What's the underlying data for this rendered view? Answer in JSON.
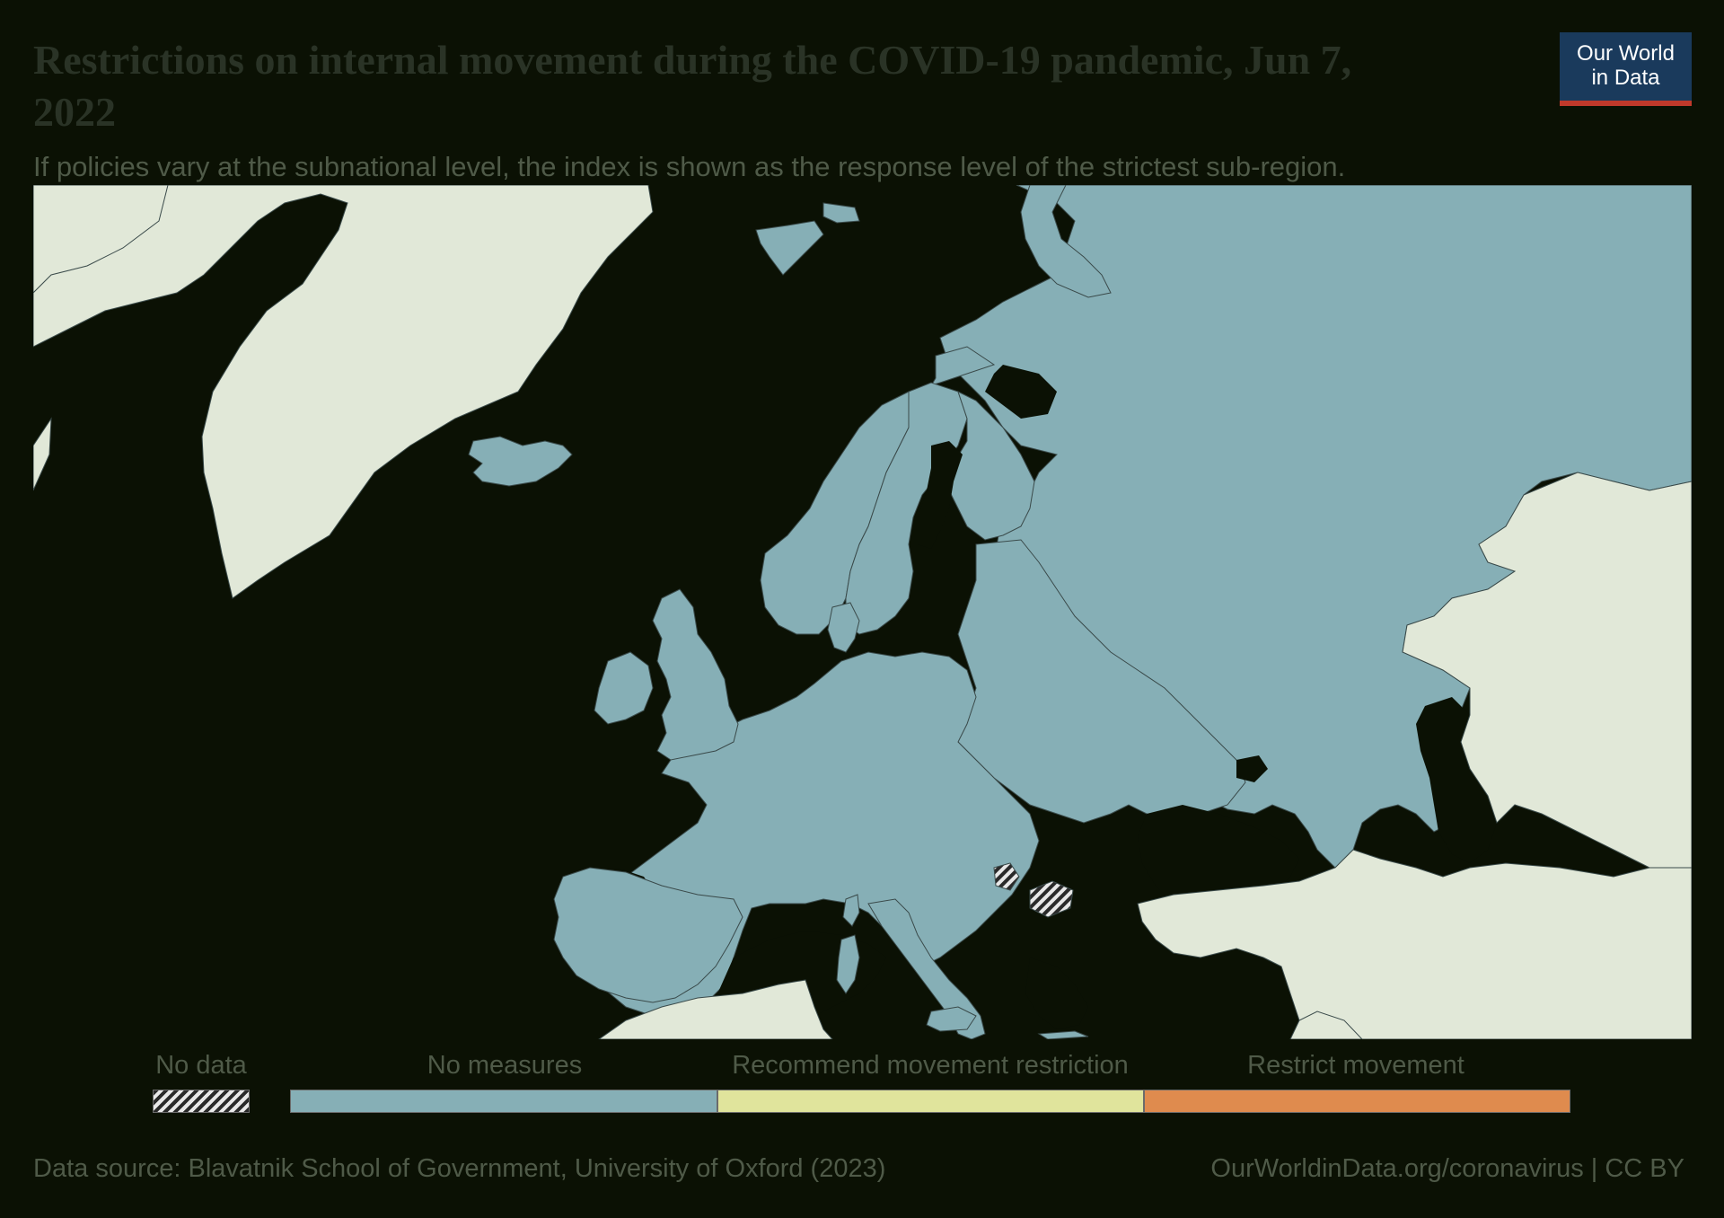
{
  "header": {
    "title": "Restrictions on internal movement during the COVID-19 pandemic, Jun 7, 2022",
    "subtitle": "If policies vary at the subnational level, the index is shown as the response level of the strictest sub-region."
  },
  "logo": {
    "line1": "Our World",
    "line2": "in Data"
  },
  "legend": {
    "nodata_label": "No data",
    "items": [
      {
        "label": "No measures",
        "color": "#86afb6"
      },
      {
        "label": "Recommend movement restriction",
        "color": "#e0e49c"
      },
      {
        "label": "Restrict movement",
        "color": "#df8b4e"
      }
    ]
  },
  "map_colors": {
    "ocean": "#0b1104",
    "no_measures": "#86afb6",
    "outside_region": "#e1e8d8",
    "border": "#3a4a4a"
  },
  "footer": {
    "source": "Data source: Blavatnik School of Government, University of Oxford (2023)",
    "link": "OurWorldinData.org/coronavirus | CC BY"
  }
}
